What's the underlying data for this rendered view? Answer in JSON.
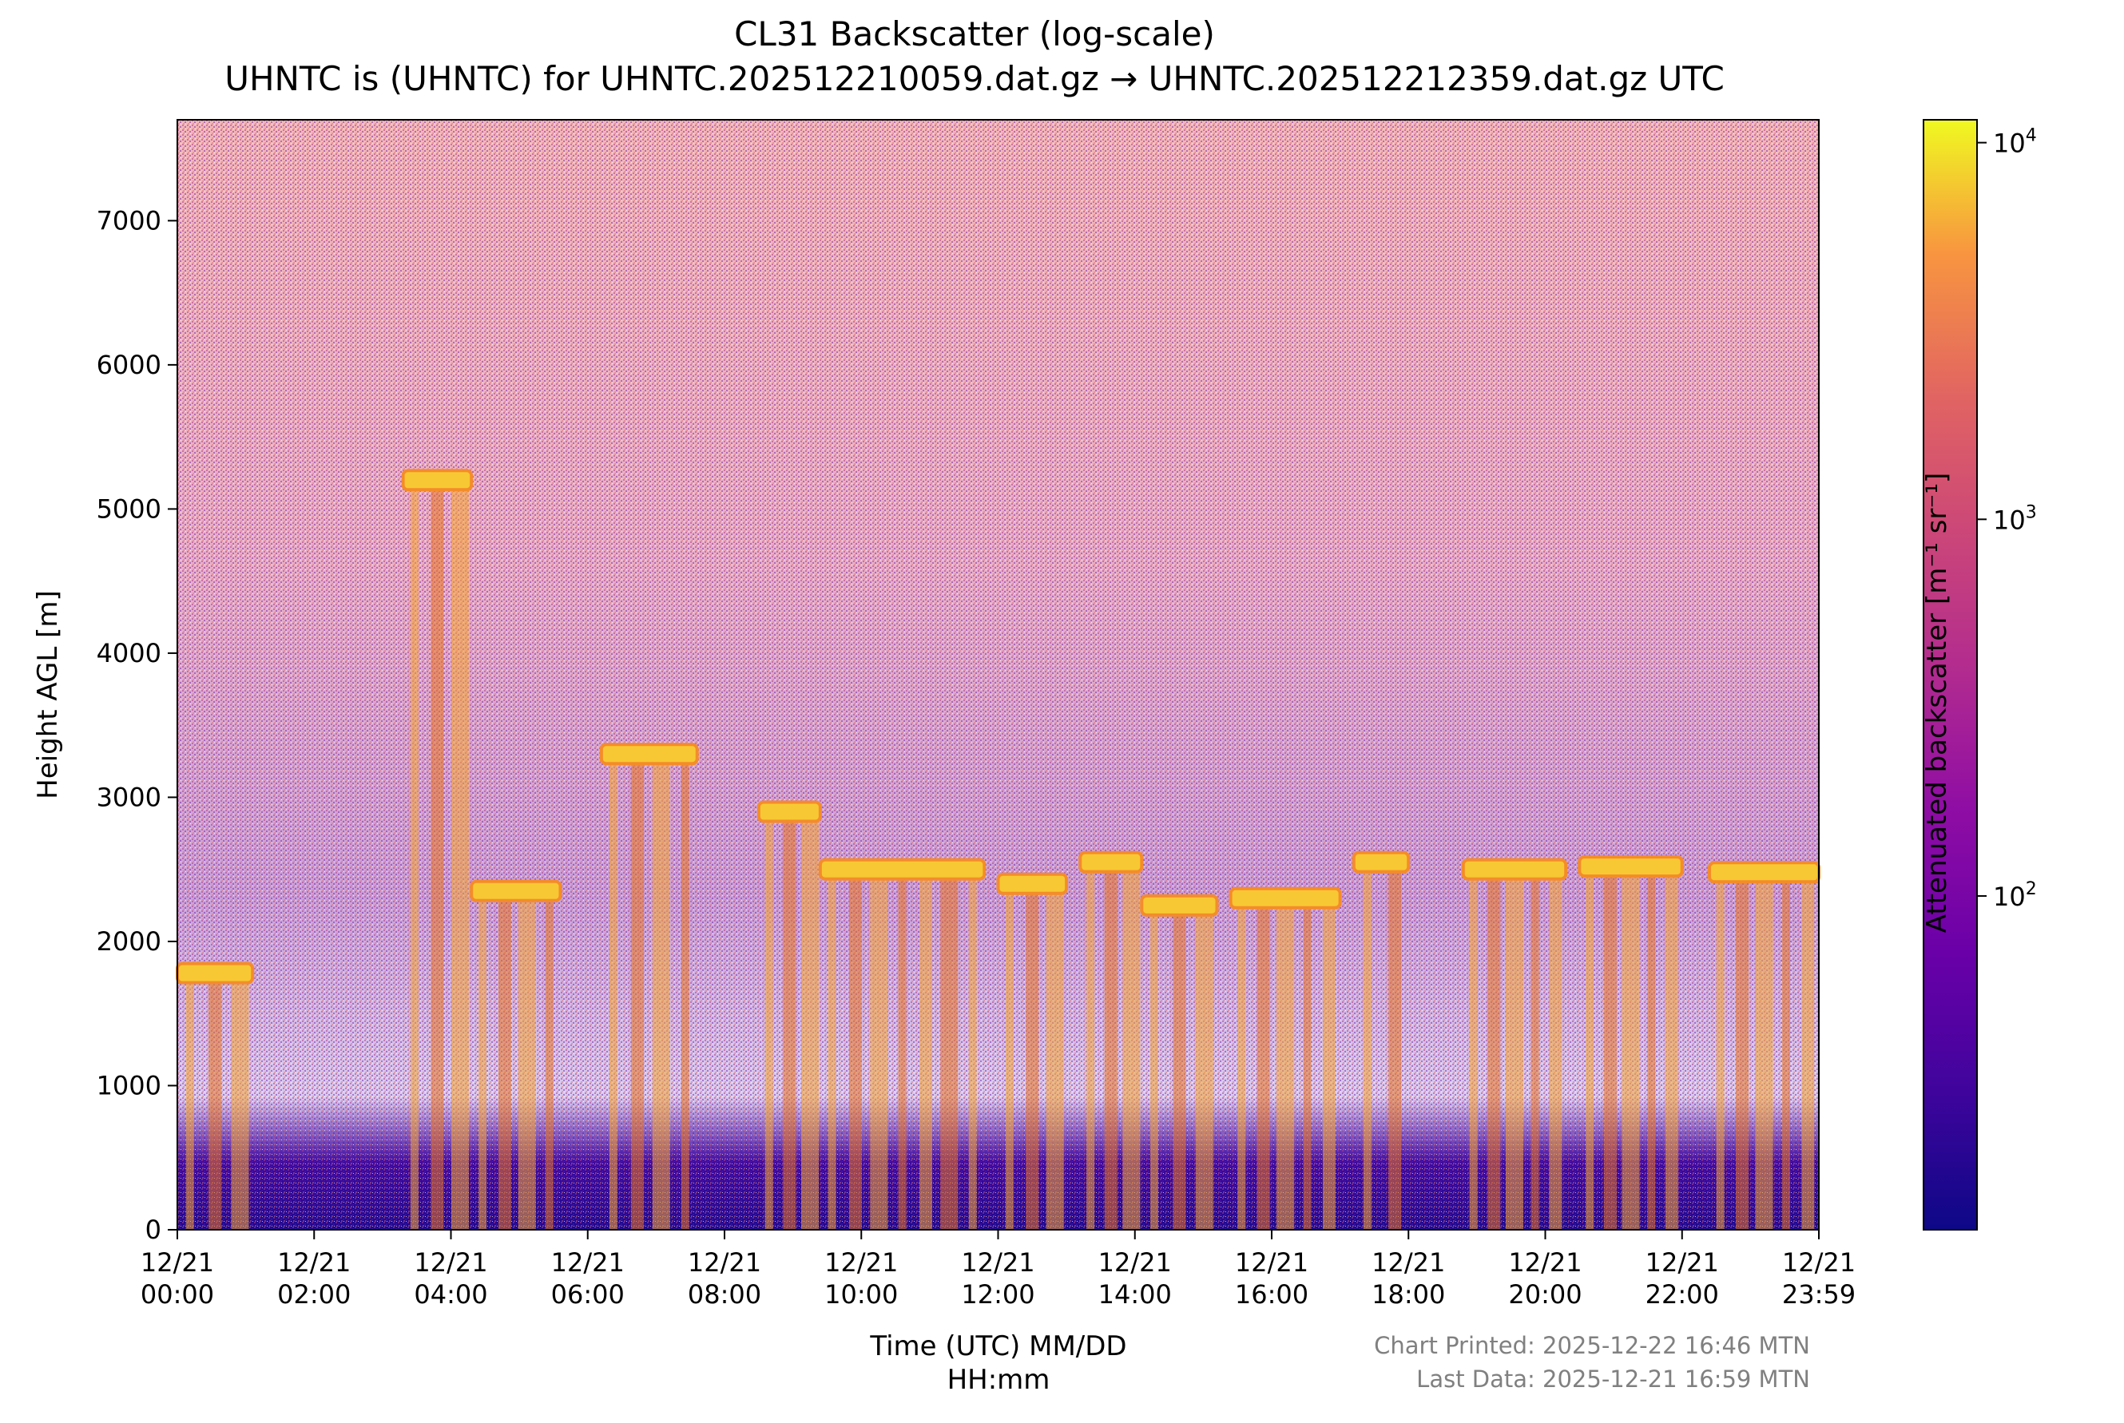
{
  "chart_data": {
    "type": "heatmap",
    "title": "CL31 Backscatter (log-scale)",
    "subtitle": "UHNTC is (UHNTC) for UHNTC.202512210059.dat.gz → UHNTC.202512212359.dat.gz UTC",
    "xlabel_line1": "Time (UTC) MM/DD",
    "xlabel_line2": "HH:mm",
    "ylabel": "Height AGL [m]",
    "colorbar_label": "Attenuated backscatter [m⁻¹ sr⁻¹]",
    "colormap": "plasma",
    "colorbar_scale": "log",
    "colorbar_range": [
      13,
      11500
    ],
    "colorbar_ticks": [
      {
        "value": 100,
        "base": "10",
        "exp": "2"
      },
      {
        "value": 1000,
        "base": "10",
        "exp": "3"
      },
      {
        "value": 10000,
        "base": "10",
        "exp": "4"
      }
    ],
    "x_range_hours": [
      0,
      24
    ],
    "y_range_m": [
      0,
      7700
    ],
    "y_ticks": [
      "0",
      "1000",
      "2000",
      "3000",
      "4000",
      "5000",
      "6000",
      "7000"
    ],
    "x_ticks": [
      {
        "date": "12/21",
        "time": "00:00",
        "hour": 0
      },
      {
        "date": "12/21",
        "time": "02:00",
        "hour": 2
      },
      {
        "date": "12/21",
        "time": "04:00",
        "hour": 4
      },
      {
        "date": "12/21",
        "time": "06:00",
        "hour": 6
      },
      {
        "date": "12/21",
        "time": "08:00",
        "hour": 8
      },
      {
        "date": "12/21",
        "time": "10:00",
        "hour": 10
      },
      {
        "date": "12/21",
        "time": "12:00",
        "hour": 12
      },
      {
        "date": "12/21",
        "time": "14:00",
        "hour": 14
      },
      {
        "date": "12/21",
        "time": "16:00",
        "hour": 16
      },
      {
        "date": "12/21",
        "time": "18:00",
        "hour": 18
      },
      {
        "date": "12/21",
        "time": "20:00",
        "hour": 20
      },
      {
        "date": "12/21",
        "time": "22:00",
        "hour": 22
      },
      {
        "date": "12/21",
        "time": "23:59",
        "hour": 24
      }
    ],
    "cloud_layers": [
      {
        "start_hour": 0.0,
        "end_hour": 1.1,
        "height_m": 1780
      },
      {
        "start_hour": 3.3,
        "end_hour": 4.3,
        "height_m": 5200
      },
      {
        "start_hour": 4.3,
        "end_hour": 5.6,
        "height_m": 2350
      },
      {
        "start_hour": 6.2,
        "end_hour": 7.6,
        "height_m": 3300
      },
      {
        "start_hour": 8.5,
        "end_hour": 9.4,
        "height_m": 2900
      },
      {
        "start_hour": 9.4,
        "end_hour": 11.8,
        "height_m": 2500
      },
      {
        "start_hour": 12.0,
        "end_hour": 13.0,
        "height_m": 2400
      },
      {
        "start_hour": 13.2,
        "end_hour": 14.1,
        "height_m": 2550
      },
      {
        "start_hour": 14.1,
        "end_hour": 15.2,
        "height_m": 2250
      },
      {
        "start_hour": 15.4,
        "end_hour": 17.0,
        "height_m": 2300
      },
      {
        "start_hour": 17.2,
        "end_hour": 18.0,
        "height_m": 2550
      },
      {
        "start_hour": 18.8,
        "end_hour": 20.3,
        "height_m": 2500
      },
      {
        "start_hour": 20.5,
        "end_hour": 22.0,
        "height_m": 2520
      },
      {
        "start_hour": 22.4,
        "end_hour": 24.0,
        "height_m": 2480
      }
    ]
  },
  "footer": {
    "printed": "Chart Printed: 2025-12-22 16:46 MTN",
    "last_data": "Last Data: 2025-12-21 16:59 MTN"
  }
}
